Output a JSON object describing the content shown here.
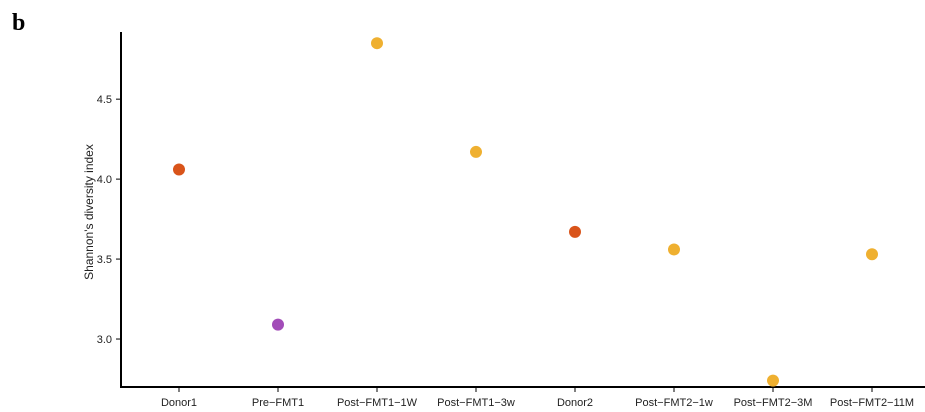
{
  "panel_label": "b",
  "chart_data": {
    "type": "scatter",
    "title": "",
    "xlabel": "",
    "ylabel": "Shannon's diversity index",
    "ylim": [
      2.7,
      4.92
    ],
    "yticks": [
      3.0,
      3.5,
      4.0,
      4.5
    ],
    "yticklabels": [
      "3.0",
      "3.5",
      "4.0",
      "4.5"
    ],
    "grid": false,
    "legend": "none",
    "categories": [
      "Donor1",
      "Pre−FMT1",
      "Post−FMT1−1W",
      "Post−FMT1−3w",
      "Donor2",
      "Post−FMT2−1w",
      "Post−FMT2−3M",
      "Post−FMT2−11M"
    ],
    "values": [
      4.06,
      3.09,
      4.85,
      4.17,
      3.67,
      3.56,
      2.74,
      3.53
    ],
    "point_colors": [
      "#d9541a",
      "#a24cb8",
      "#efb030",
      "#efb030",
      "#d9541a",
      "#efb030",
      "#efb030",
      "#efb030"
    ]
  }
}
